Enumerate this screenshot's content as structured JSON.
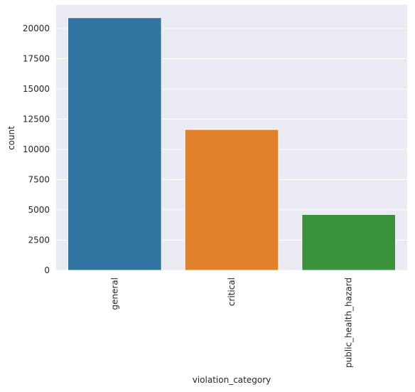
{
  "chart_data": {
    "type": "bar",
    "categories": [
      "general",
      "critical",
      "public_health_hazard"
    ],
    "values": [
      20900,
      11650,
      4620
    ],
    "xlabel": "violation_category",
    "ylabel": "count",
    "ylim": [
      0,
      21945
    ],
    "yticks": [
      0,
      2500,
      5000,
      7500,
      10000,
      12500,
      15000,
      17500,
      20000
    ],
    "ytick_labels": [
      "0",
      "2500",
      "5000",
      "7500",
      "10000",
      "12500",
      "15000",
      "17500",
      "20000"
    ],
    "colors": [
      "#3274a1",
      "#e1812c",
      "#3a923a"
    ],
    "background": "#eaeaf2",
    "grid": true,
    "grid_color": "#ffffff",
    "xtick_rotation": "vertical"
  }
}
